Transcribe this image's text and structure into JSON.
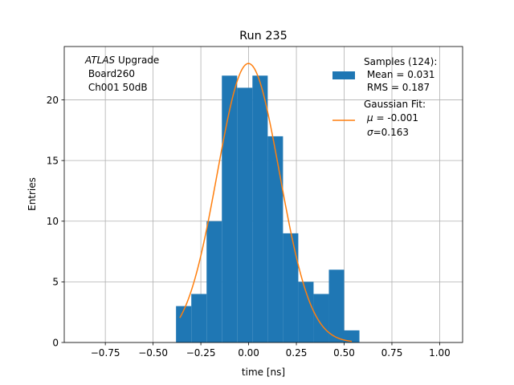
{
  "chart_data": {
    "type": "histogram",
    "title": "Run 235",
    "xlabel": "time [ns]",
    "ylabel": "Entries",
    "xlim": [
      -0.965,
      1.12
    ],
    "ylim": [
      0,
      24.4
    ],
    "grid": true,
    "xticks": [
      -0.75,
      -0.5,
      -0.25,
      0.0,
      0.25,
      0.5,
      0.75,
      1.0
    ],
    "xtick_labels": [
      "−0.75",
      "−0.50",
      "−0.25",
      "0.00",
      "0.25",
      "0.50",
      "0.75",
      "1.00"
    ],
    "yticks": [
      0,
      5,
      10,
      15,
      20
    ],
    "ytick_labels": [
      "0",
      "5",
      "10",
      "15",
      "20"
    ],
    "histogram": {
      "name": "Samples",
      "color": "#1f77b4",
      "bin_edges": [
        -0.9,
        -0.82,
        -0.74,
        -0.66,
        -0.58,
        -0.5,
        -0.42,
        -0.38,
        -0.3,
        -0.22,
        -0.14,
        -0.06,
        0.02,
        0.1,
        0.18,
        0.26,
        0.34,
        0.42,
        0.5,
        0.58,
        0.66,
        0.74,
        0.82,
        0.9,
        0.98,
        1.06
      ],
      "bins": [
        {
          "left": -0.38,
          "right": -0.3,
          "count": 3
        },
        {
          "left": -0.3,
          "right": -0.22,
          "count": 4
        },
        {
          "left": -0.22,
          "right": -0.14,
          "count": 10
        },
        {
          "left": -0.14,
          "right": -0.06,
          "count": 22
        },
        {
          "left": -0.06,
          "right": 0.02,
          "count": 21
        },
        {
          "left": 0.02,
          "right": 0.1,
          "count": 22
        },
        {
          "left": 0.1,
          "right": 0.18,
          "count": 17
        },
        {
          "left": 0.18,
          "right": 0.26,
          "count": 9
        },
        {
          "left": 0.26,
          "right": 0.34,
          "count": 5
        },
        {
          "left": 0.34,
          "right": 0.42,
          "count": 4
        },
        {
          "left": 0.42,
          "right": 0.5,
          "count": 6
        },
        {
          "left": 0.5,
          "right": 0.58,
          "count": 1
        }
      ]
    },
    "fit": {
      "name": "Gaussian Fit",
      "color": "#ff7f0e",
      "amplitude": 23.0,
      "mu": -0.001,
      "sigma": 0.163,
      "x_range": [
        -0.36,
        0.54
      ]
    },
    "annotation": {
      "italic": "ATLAS",
      "rest": " Upgrade",
      "line2": " Board260",
      "line3": " Ch001 50dB"
    },
    "legend": {
      "position": "top-right",
      "samples_title": "Samples (124):",
      "samples_mean": " Mean = 0.031",
      "samples_rms": " RMS = 0.187",
      "fit_title": "Gaussian Fit:",
      "fit_mu_sym": "μ",
      "fit_mu_val": " = -0.001",
      "fit_sigma_sym": "σ",
      "fit_sigma_val": "=0.163"
    }
  }
}
